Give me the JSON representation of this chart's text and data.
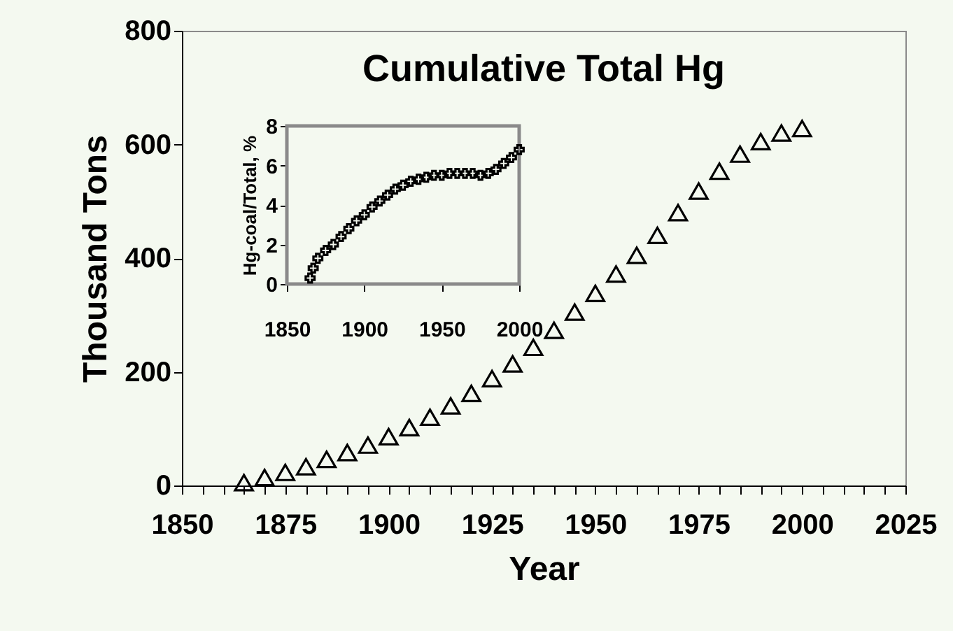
{
  "chart_data": [
    {
      "type": "scatter",
      "title": "Cumulative Total Hg",
      "xlabel": "Year",
      "ylabel": "Thousand Tons",
      "marker": "triangle",
      "grid": false,
      "xlim": [
        1850,
        2025
      ],
      "ylim": [
        0,
        800
      ],
      "yticks": [
        0,
        200,
        400,
        600,
        800
      ],
      "xticks": [
        1850,
        {
          "value": 1855,
          "label": null
        },
        {
          "value": 1860,
          "label": null
        },
        {
          "value": 1865,
          "label": null
        },
        {
          "value": 1870,
          "label": null
        },
        1875,
        {
          "value": 1880,
          "label": null
        },
        {
          "value": 1885,
          "label": null
        },
        {
          "value": 1890,
          "label": null
        },
        {
          "value": 1895,
          "label": null
        },
        1900,
        {
          "value": 1905,
          "label": null
        },
        {
          "value": 1910,
          "label": null
        },
        {
          "value": 1915,
          "label": null
        },
        {
          "value": 1920,
          "label": null
        },
        1925,
        {
          "value": 1930,
          "label": null
        },
        {
          "value": 1935,
          "label": null
        },
        {
          "value": 1940,
          "label": null
        },
        {
          "value": 1945,
          "label": null
        },
        1950,
        {
          "value": 1955,
          "label": null
        },
        {
          "value": 1960,
          "label": null
        },
        {
          "value": 1965,
          "label": null
        },
        {
          "value": 1970,
          "label": null
        },
        1975,
        {
          "value": 1980,
          "label": null
        },
        {
          "value": 1985,
          "label": null
        },
        {
          "value": 1990,
          "label": null
        },
        {
          "value": 1995,
          "label": null
        },
        2000,
        {
          "value": 2005,
          "label": null
        },
        {
          "value": 2010,
          "label": null
        },
        {
          "value": 2015,
          "label": null
        },
        {
          "value": 2020,
          "label": null
        },
        2025
      ],
      "x": [
        1865,
        1870,
        1875,
        1880,
        1885,
        1890,
        1895,
        1900,
        1905,
        1910,
        1915,
        1920,
        1925,
        1930,
        1935,
        1940,
        1945,
        1950,
        1955,
        1960,
        1965,
        1970,
        1975,
        1980,
        1985,
        1990,
        1995,
        2000
      ],
      "series": [
        {
          "color": "#000000",
          "values": [
            5,
            14,
            23,
            33,
            46,
            58,
            71,
            86,
            102,
            120,
            140,
            162,
            188,
            214,
            243,
            273,
            305,
            338,
            372,
            405,
            440,
            480,
            518,
            553,
            583,
            605,
            620,
            628
          ]
        }
      ]
    },
    {
      "type": "scatter",
      "ylabel": "Hg-coal/Total, %",
      "marker": "cross",
      "grid": false,
      "xlim": [
        1850,
        2000
      ],
      "ylim": [
        0,
        8
      ],
      "xticks": [
        1850,
        1900,
        1950,
        2000
      ],
      "yticks": [
        0,
        2,
        4,
        6,
        8
      ],
      "x": [
        1865,
        1867,
        1870,
        1875,
        1880,
        1885,
        1890,
        1895,
        1900,
        1905,
        1910,
        1915,
        1920,
        1925,
        1930,
        1935,
        1940,
        1945,
        1950,
        1955,
        1960,
        1965,
        1970,
        1975,
        1980,
        1985,
        1990,
        1995,
        2000
      ],
      "series": [
        {
          "color": "#000000",
          "values": [
            0.3,
            0.8,
            1.3,
            1.7,
            2.0,
            2.4,
            2.8,
            3.2,
            3.5,
            3.9,
            4.2,
            4.5,
            4.8,
            5.0,
            5.2,
            5.3,
            5.4,
            5.5,
            5.5,
            5.6,
            5.6,
            5.6,
            5.6,
            5.5,
            5.6,
            5.8,
            6.1,
            6.4,
            6.8
          ]
        }
      ]
    }
  ]
}
